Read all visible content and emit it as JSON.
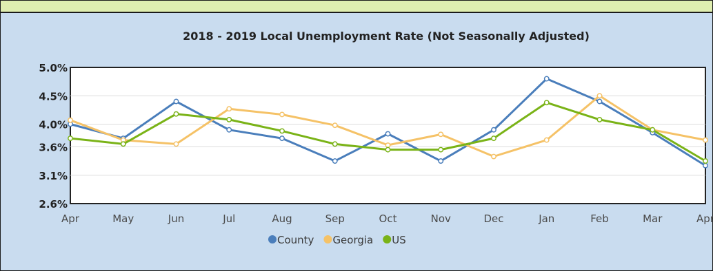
{
  "chart_data": {
    "type": "line",
    "title": "2018 - 2019 Local Unemployment Rate (Not Seasonally Adjusted)",
    "xlabel": "",
    "ylabel": "",
    "categories": [
      "Apr",
      "May",
      "Jun",
      "Jul",
      "Aug",
      "Sep",
      "Oct",
      "Nov",
      "Dec",
      "Jan",
      "Feb",
      "Mar",
      "Apr"
    ],
    "y_ticks": [
      "5.0%",
      "4.5%",
      "4.0%",
      "3.6%",
      "3.1%",
      "2.6%"
    ],
    "ylim": [
      2.6,
      5.0
    ],
    "grid": true,
    "legend_position": "bottom",
    "series": [
      {
        "name": "County",
        "color": "#4a7ebb",
        "values": [
          4.0,
          3.75,
          4.4,
          3.9,
          3.75,
          3.35,
          3.83,
          3.35,
          3.9,
          4.8,
          4.4,
          3.85,
          3.27
        ]
      },
      {
        "name": "Georgia",
        "color": "#f5c267",
        "values": [
          4.07,
          3.72,
          3.65,
          4.27,
          4.17,
          3.98,
          3.63,
          3.82,
          3.43,
          3.72,
          4.5,
          3.9,
          3.72
        ]
      },
      {
        "name": "US",
        "color": "#7ab317",
        "values": [
          3.75,
          3.65,
          4.18,
          4.08,
          3.88,
          3.65,
          3.55,
          3.55,
          3.75,
          4.38,
          4.08,
          3.9,
          3.35
        ]
      }
    ]
  }
}
